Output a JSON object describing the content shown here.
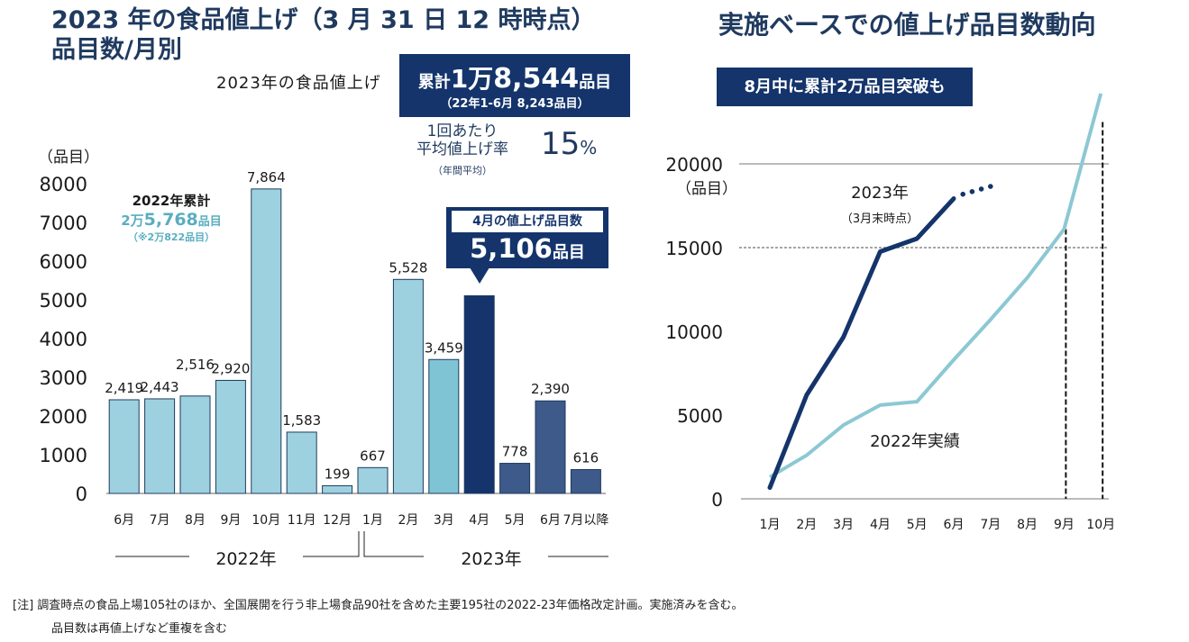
{
  "left_panel": {
    "title_line1": "2023 年の食品値上げ（3 月 31 日 12 時時点）",
    "title_line2": "品目数/月別",
    "summary_label": "2023年の食品値上げ",
    "summary_box": {
      "prefix": "累計",
      "value_man": "1万",
      "value": "8,544",
      "unit": "品目",
      "sub": "（22年1-6月 8,243品目）"
    },
    "avg_rate": {
      "label_line1": "1回あたり",
      "label_line2": "平均値上げ率",
      "value": "15",
      "unit": "%",
      "note": "（年間平均）"
    },
    "total_2022": {
      "label": "2022年累計",
      "value_man": "2万",
      "value": "5,768",
      "unit": "品目",
      "note": "（※2万822品目）"
    },
    "april_callout": {
      "label": "4月の値上げ品目数",
      "value": "5,106",
      "unit": "品目"
    },
    "year_labels": [
      "2022年",
      "2023年"
    ]
  },
  "right_panel": {
    "title": "実施ベースでの値上げ品目数動向",
    "banner": "8月中に累計2万品目突破も",
    "series_label_2023": "2023年",
    "series_note_2023": "（3月末時点）",
    "series_label_2022": "2022年実績",
    "y_unit": "（品目）"
  },
  "footnote": {
    "line1": "[注]  調査時点の食品上場105社のほか、全国展開を行う非上場食品90社を含めた主要195社の2022-23年価格改定計画。実施済みを含む。",
    "line2": "品目数は再値上げなど重複を含む"
  },
  "chart_data": [
    {
      "type": "bar",
      "title": "2023 年の食品値上げ（3 月 31 日 12 時時点）品目数/月別",
      "ylabel": "（品目）",
      "xlabel": "",
      "ylim": [
        0,
        8000
      ],
      "yticks": [
        0,
        1000,
        2000,
        3000,
        4000,
        5000,
        6000,
        7000,
        8000
      ],
      "categories": [
        "6月",
        "7月",
        "8月",
        "9月",
        "10月",
        "11月",
        "12月",
        "1月",
        "2月",
        "3月",
        "4月",
        "5月",
        "6月",
        "7月以降"
      ],
      "values": [
        2419,
        2443,
        2516,
        2920,
        7864,
        1583,
        199,
        667,
        5528,
        3459,
        5106,
        778,
        2390,
        616
      ],
      "value_labels": [
        "2,419",
        "2,443",
        "2,516",
        "2,920",
        "7,864",
        "1,583",
        "199",
        "667",
        "5,528",
        "3,459",
        "5,106",
        "778",
        "2,390",
        "616"
      ],
      "bar_colors": [
        "#9dd1df",
        "#9dd1df",
        "#9dd1df",
        "#9dd1df",
        "#9dd1df",
        "#9dd1df",
        "#9dd1df",
        "#9dd1df",
        "#9dd1df",
        "#7fc4d4",
        "#14346b",
        "#3d5a8a",
        "#3d5a8a",
        "#3d5a8a"
      ],
      "year_groups": [
        {
          "label": "2022年",
          "from": 0,
          "to": 6
        },
        {
          "label": "2023年",
          "from": 7,
          "to": 13
        }
      ],
      "grid": false
    },
    {
      "type": "line",
      "title": "実施ベースでの値上げ品目数動向",
      "ylabel": "（品目）",
      "ylim": [
        0,
        20000
      ],
      "yticks": [
        0,
        5000,
        10000,
        15000,
        20000
      ],
      "x": [
        "1月",
        "2月",
        "3月",
        "4月",
        "5月",
        "6月",
        "7月",
        "8月",
        "9月",
        "10月"
      ],
      "series": [
        {
          "name": "2023年",
          "color": "#14346b",
          "values": [
            667,
            6195,
            9654,
            14760,
            15538,
            17928
          ],
          "projection_to": {
            "x_index": 6,
            "value": 18544
          }
        },
        {
          "name": "2022年実績",
          "color": "#8cc8d3",
          "values": [
            1300,
            2600,
            4400,
            5600,
            5800,
            8300,
            10700,
            13200,
            16100,
            24200
          ]
        }
      ],
      "reference_lines": {
        "horizontal": [
          15000,
          20000
        ],
        "vertical_months": [
          "9月",
          "10月"
        ]
      },
      "grid": false
    }
  ]
}
